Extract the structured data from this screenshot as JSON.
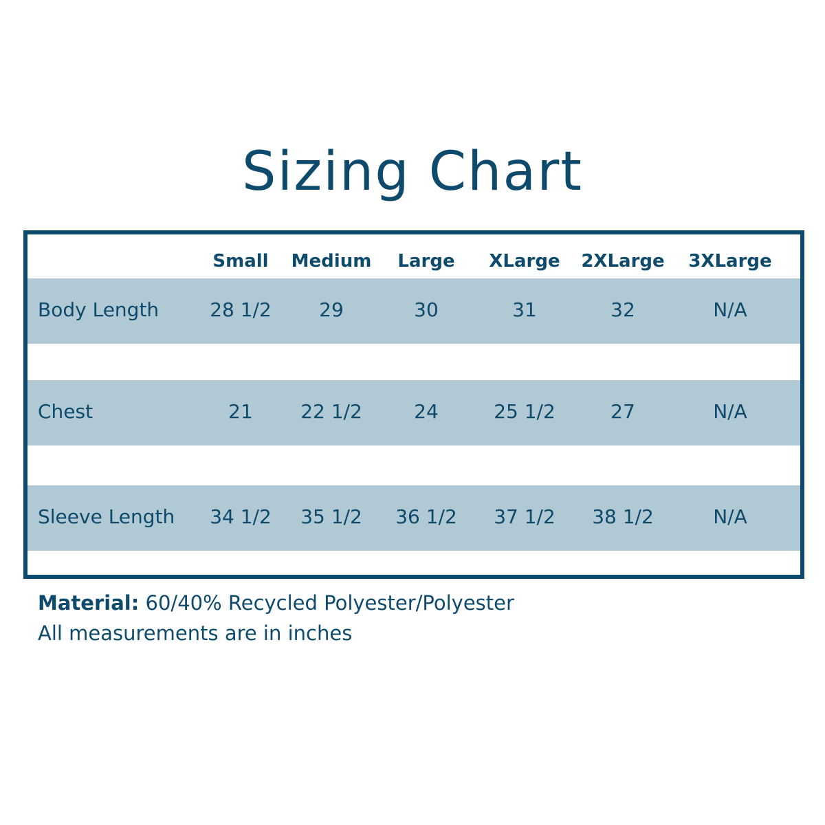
{
  "title": "Sizing Chart",
  "table": {
    "columns": [
      "Small",
      "Medium",
      "Large",
      "XLarge",
      "2XLarge",
      "3XLarge"
    ],
    "rows": [
      {
        "label": "Body Length",
        "values": [
          "28 1/2",
          "29",
          "30",
          "31",
          "32",
          "N/A"
        ]
      },
      {
        "label": "Chest",
        "values": [
          "21",
          "22 1/2",
          "24",
          "25 1/2",
          "27",
          "N/A"
        ]
      },
      {
        "label": "Sleeve Length",
        "values": [
          "34 1/2",
          "35 1/2",
          "36 1/2",
          "37 1/2",
          "38 1/2",
          "N/A"
        ]
      }
    ]
  },
  "footer": {
    "material_label": "Material:",
    "material_value": "60/40% Recycled Polyester/Polyester",
    "note": "All measurements are in inches"
  },
  "colors": {
    "primary": "#0e4a6b",
    "band": "#b1c9d4"
  }
}
